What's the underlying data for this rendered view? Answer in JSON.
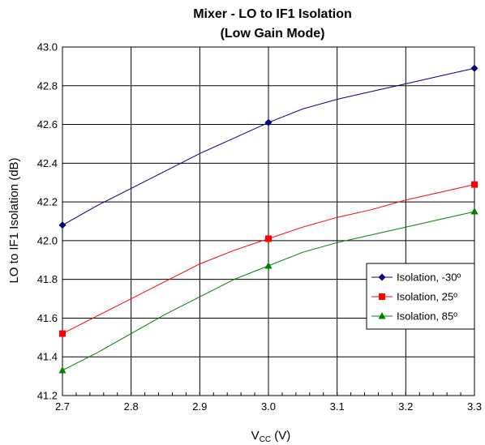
{
  "chart_data": {
    "type": "line",
    "title": "Mixer - LO to IF1 Isolation",
    "subtitle": "(Low Gain Mode)",
    "xlabel_main": "V",
    "xlabel_sub": "CC",
    "xlabel_unit": " (V)",
    "ylabel": "LO to IF1 Isolation (dB)",
    "xlim": [
      2.7,
      3.3
    ],
    "ylim": [
      41.2,
      43.0
    ],
    "x_ticks": [
      "2.7",
      "2.8",
      "2.9",
      "3.0",
      "3.1",
      "3.2",
      "3.3"
    ],
    "y_ticks": [
      "41.2",
      "41.4",
      "41.6",
      "41.8",
      "42.0",
      "42.2",
      "42.4",
      "42.6",
      "42.8",
      "43.0"
    ],
    "grid": true,
    "legend_position": "right",
    "series": [
      {
        "name": "Isolation, -30º",
        "color": "#000080",
        "marker": "diamond",
        "marker_x": [
          2.7,
          3.0,
          3.3
        ],
        "x": [
          2.7,
          2.75,
          2.8,
          2.85,
          2.9,
          2.95,
          3.0,
          3.05,
          3.1,
          3.15,
          3.2,
          3.25,
          3.3
        ],
        "values": [
          42.08,
          42.18,
          42.27,
          42.36,
          42.45,
          42.53,
          42.61,
          42.68,
          42.73,
          42.77,
          42.81,
          42.85,
          42.89
        ]
      },
      {
        "name": "Isolation, 25º",
        "color": "#ff0000",
        "marker": "square",
        "marker_x": [
          2.7,
          3.0,
          3.3
        ],
        "x": [
          2.7,
          2.75,
          2.8,
          2.85,
          2.9,
          2.95,
          3.0,
          3.05,
          3.1,
          3.15,
          3.2,
          3.25,
          3.3
        ],
        "values": [
          41.52,
          41.61,
          41.7,
          41.79,
          41.88,
          41.95,
          42.01,
          42.07,
          42.12,
          42.16,
          42.21,
          42.25,
          42.29
        ]
      },
      {
        "name": "Isolation, 85º",
        "color": "#008000",
        "marker": "triangle",
        "marker_x": [
          2.7,
          3.0,
          3.3
        ],
        "x": [
          2.7,
          2.75,
          2.8,
          2.85,
          2.9,
          2.95,
          3.0,
          3.05,
          3.1,
          3.15,
          3.2,
          3.25,
          3.3
        ],
        "values": [
          41.33,
          41.42,
          41.52,
          41.62,
          41.71,
          41.8,
          41.87,
          41.94,
          41.99,
          42.03,
          42.07,
          42.11,
          42.15
        ]
      }
    ]
  }
}
